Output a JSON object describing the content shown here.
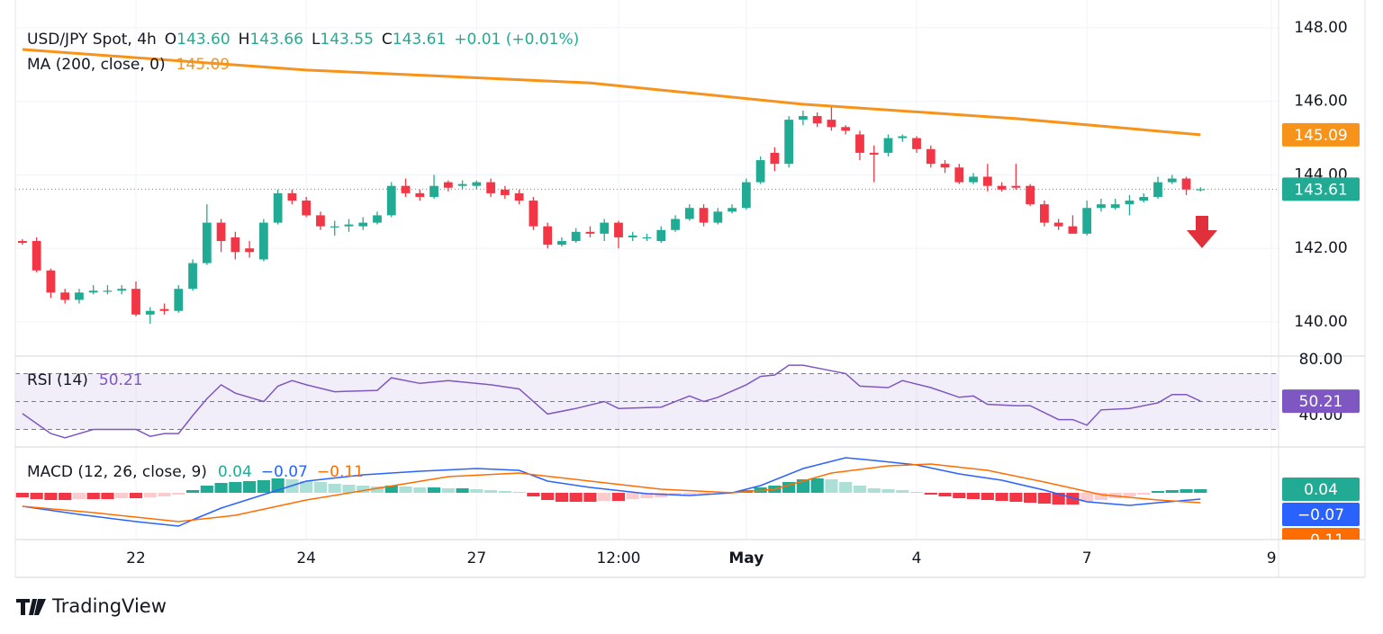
{
  "header": {
    "symbol": "USD/JPY Spot, 4h",
    "ohlc": [
      {
        "key": "O",
        "value": "143.60"
      },
      {
        "key": "H",
        "value": "143.66"
      },
      {
        "key": "L",
        "value": "143.55"
      },
      {
        "key": "C",
        "value": "143.61"
      }
    ],
    "change": "+0.01 (+0.01%)",
    "brand": "TradingView"
  },
  "chart_data": [
    {
      "type": "candlestick",
      "up_color": "#22ab94",
      "down_color": "#f23645",
      "categories": [
        null,
        null,
        null,
        null,
        null,
        null,
        null,
        null,
        "22",
        null,
        null,
        null,
        null,
        null,
        null,
        null,
        null,
        null,
        null,
        null,
        "24",
        null,
        null,
        null,
        null,
        null,
        null,
        null,
        null,
        null,
        null,
        null,
        "27",
        null,
        null,
        null,
        null,
        null,
        null,
        null,
        null,
        null,
        "12:00",
        null,
        null,
        null,
        null,
        null,
        null,
        null,
        null,
        "May",
        null,
        null,
        null,
        null,
        null,
        null,
        null,
        null,
        null,
        null,
        null,
        "4",
        null,
        null,
        null,
        null,
        null,
        null,
        null,
        null,
        null,
        null,
        null,
        "7",
        null,
        null,
        null,
        null,
        null,
        null,
        null,
        null,
        null,
        null,
        null,
        null,
        "9"
      ],
      "open": [
        142.2,
        142.2,
        141.4,
        140.8,
        140.6,
        140.8,
        140.85,
        140.85,
        140.9,
        140.2,
        140.35,
        140.3,
        140.9,
        141.6,
        142.7,
        142.3,
        142.0,
        141.7,
        142.7,
        143.5,
        143.3,
        142.9,
        142.6,
        142.6,
        142.6,
        142.7,
        142.9,
        143.7,
        143.5,
        143.4,
        143.8,
        143.7,
        143.7,
        143.8,
        143.6,
        143.5,
        143.3,
        142.6,
        142.1,
        142.2,
        142.45,
        142.4,
        142.7,
        142.3,
        142.3,
        142.2,
        142.5,
        142.8,
        143.1,
        142.7,
        143.0,
        143.1,
        143.8,
        144.6,
        144.3,
        145.5,
        145.6,
        145.5,
        145.3,
        145.1,
        144.6,
        144.6,
        145.0,
        145.0,
        144.7,
        144.3,
        144.2,
        143.8,
        143.95,
        143.7,
        143.7,
        143.7,
        143.2,
        142.7,
        142.6,
        142.4,
        143.1,
        143.1,
        143.2,
        143.3,
        143.4,
        143.8,
        143.9,
        143.6,
        null,
        null,
        null,
        null,
        null
      ],
      "high": [
        142.25,
        142.3,
        141.45,
        140.9,
        140.9,
        141.0,
        141.0,
        141.0,
        141.1,
        140.4,
        140.5,
        141.0,
        141.7,
        143.2,
        142.8,
        142.45,
        142.2,
        142.8,
        143.6,
        143.6,
        143.4,
        143.0,
        142.75,
        142.8,
        142.85,
        143.0,
        143.8,
        143.9,
        143.6,
        144.0,
        143.85,
        143.85,
        143.85,
        143.9,
        143.7,
        143.6,
        143.4,
        142.7,
        142.3,
        142.55,
        142.6,
        142.8,
        142.75,
        142.45,
        142.4,
        142.6,
        142.9,
        143.2,
        143.2,
        143.1,
        143.2,
        143.9,
        144.5,
        144.75,
        145.6,
        145.75,
        145.7,
        145.9,
        145.35,
        145.2,
        144.8,
        145.1,
        145.1,
        145.05,
        144.8,
        144.4,
        144.3,
        144.05,
        144.3,
        143.8,
        144.3,
        143.75,
        143.3,
        142.8,
        142.9,
        143.3,
        143.35,
        143.35,
        143.45,
        143.5,
        143.95,
        144.0,
        143.95,
        143.66,
        null,
        null,
        null,
        null,
        null
      ],
      "low": [
        142.1,
        141.35,
        140.65,
        140.5,
        140.5,
        140.75,
        140.75,
        140.75,
        140.15,
        139.95,
        140.2,
        140.25,
        140.85,
        141.55,
        141.9,
        141.7,
        141.75,
        141.65,
        142.65,
        143.2,
        142.85,
        142.5,
        142.35,
        142.45,
        142.5,
        142.65,
        142.85,
        143.4,
        143.3,
        143.35,
        143.55,
        143.6,
        143.6,
        143.4,
        143.35,
        143.2,
        142.5,
        142.0,
        142.05,
        142.15,
        142.3,
        142.2,
        142.0,
        142.2,
        142.2,
        142.15,
        142.45,
        142.75,
        142.6,
        142.65,
        142.95,
        143.05,
        143.75,
        144.1,
        144.2,
        145.35,
        145.3,
        145.2,
        145.1,
        144.4,
        143.8,
        144.5,
        144.9,
        144.6,
        144.2,
        144.05,
        143.75,
        143.75,
        143.55,
        143.55,
        143.6,
        143.15,
        142.6,
        142.5,
        142.4,
        142.35,
        143.0,
        143.05,
        142.9,
        143.25,
        143.35,
        143.75,
        143.45,
        143.55,
        null,
        null,
        null,
        null,
        null
      ],
      "close": [
        142.15,
        141.4,
        140.8,
        140.6,
        140.8,
        140.85,
        140.85,
        140.9,
        140.2,
        140.3,
        140.3,
        140.9,
        141.6,
        142.7,
        142.2,
        141.9,
        141.9,
        142.7,
        143.5,
        143.3,
        142.9,
        142.6,
        142.6,
        142.65,
        142.7,
        142.9,
        143.7,
        143.5,
        143.4,
        143.7,
        143.65,
        143.75,
        143.8,
        143.5,
        143.45,
        143.3,
        142.6,
        142.1,
        142.2,
        142.45,
        142.4,
        142.7,
        142.3,
        142.35,
        142.3,
        142.5,
        142.8,
        143.1,
        142.7,
        143.0,
        143.1,
        143.8,
        144.4,
        144.3,
        145.5,
        145.6,
        145.4,
        145.3,
        145.2,
        144.6,
        144.55,
        145.0,
        145.05,
        144.7,
        144.3,
        144.2,
        143.8,
        143.95,
        143.7,
        143.6,
        143.65,
        143.2,
        142.7,
        142.6,
        142.4,
        143.1,
        143.2,
        143.2,
        143.3,
        143.4,
        143.8,
        143.9,
        143.6,
        143.61,
        null,
        null,
        null,
        null,
        null
      ],
      "ma": {
        "name": "MA (200, close, 0)",
        "color": "#f7931a",
        "x": [
          0,
          20,
          40,
          55,
          70,
          83
        ],
        "values": [
          147.41,
          146.85,
          146.5,
          145.92,
          145.53,
          145.09
        ]
      },
      "ylim": [
        139.07,
        148.34
      ],
      "yticks": [
        {
          "value": 140,
          "label": "140.00"
        },
        {
          "value": 142,
          "label": "142.00"
        },
        {
          "value": 144,
          "label": "144.00"
        },
        {
          "value": 146,
          "label": "146.00"
        },
        {
          "value": 148,
          "label": "148.00"
        }
      ],
      "grid": true
    },
    {
      "type": "line",
      "name": "RSI (14)",
      "color": "#7e57c2",
      "x": [
        0,
        2,
        3,
        5,
        8,
        9,
        10,
        11,
        12,
        13,
        14,
        15,
        17,
        18,
        19,
        20,
        22,
        25,
        26,
        28,
        30,
        33,
        35,
        37,
        39,
        41,
        42,
        45,
        47,
        48,
        49,
        51,
        52,
        53,
        54,
        55,
        57,
        58,
        59,
        61,
        62,
        64,
        66,
        67,
        68,
        70,
        71,
        73,
        74,
        75,
        76,
        78,
        80,
        81,
        82,
        83
      ],
      "values": [
        41.3,
        27,
        24,
        30,
        30,
        25,
        27,
        27,
        40,
        52,
        62,
        56,
        50,
        61,
        65,
        62,
        57,
        58,
        67,
        63,
        65,
        62,
        59,
        41,
        45,
        50,
        45,
        46,
        54,
        50,
        53,
        62,
        68,
        69,
        76,
        76,
        72,
        70,
        61,
        60,
        65,
        60,
        53,
        54,
        48,
        47,
        47,
        37,
        37,
        33,
        44,
        45,
        49,
        55,
        55,
        50.21
      ],
      "levels": [
        70,
        50,
        30
      ],
      "ylim": [
        17.4,
        81.9
      ],
      "yticks": [
        {
          "value": 40,
          "label": "40.00"
        },
        {
          "value": 80,
          "label": "80.00"
        }
      ]
    },
    {
      "type": "macd",
      "name": "MACD (12, 26, close, 9)",
      "histogram": {
        "colors": [
          "#22ab94",
          "#acdfd5",
          "#f23645",
          "#fccbcd"
        ],
        "values": [
          -0.05,
          -0.07,
          -0.08,
          -0.08,
          -0.07,
          -0.07,
          -0.07,
          -0.06,
          -0.06,
          -0.05,
          -0.04,
          -0.02,
          0.03,
          0.08,
          0.11,
          0.12,
          0.13,
          0.14,
          0.16,
          0.15,
          0.13,
          0.12,
          0.1,
          0.09,
          0.08,
          0.07,
          0.08,
          0.07,
          0.06,
          0.06,
          0.05,
          0.05,
          0.04,
          0.03,
          0.02,
          0.01,
          -0.04,
          -0.08,
          -0.1,
          -0.1,
          -0.1,
          -0.09,
          -0.09,
          -0.07,
          -0.06,
          -0.05,
          -0.03,
          -0.02,
          -0.01,
          0.0,
          0.01,
          0.03,
          0.06,
          0.08,
          0.12,
          0.15,
          0.16,
          0.15,
          0.12,
          0.08,
          0.05,
          0.04,
          0.03,
          0.01,
          -0.02,
          -0.04,
          -0.06,
          -0.07,
          -0.08,
          -0.09,
          -0.1,
          -0.11,
          -0.12,
          -0.13,
          -0.13,
          -0.1,
          -0.08,
          -0.06,
          -0.04,
          -0.02,
          0.02,
          0.03,
          0.04,
          0.04
        ]
      },
      "series": [
        {
          "name": "MACD",
          "color": "#2962ff",
          "legend_label": "−0.07",
          "x": [
            0,
            4,
            8,
            11,
            12,
            14,
            18,
            20,
            24,
            28,
            32,
            35,
            37,
            40,
            44,
            47,
            50,
            52,
            55,
            58,
            60,
            63,
            66,
            69,
            72,
            75,
            78,
            80,
            83
          ],
          "values": [
            -0.15,
            -0.24,
            -0.32,
            -0.37,
            -0.3,
            -0.17,
            0.03,
            0.13,
            0.2,
            0.24,
            0.27,
            0.25,
            0.13,
            0.06,
            -0.01,
            -0.03,
            0.0,
            0.08,
            0.27,
            0.39,
            0.36,
            0.31,
            0.21,
            0.14,
            0.03,
            -0.1,
            -0.14,
            -0.11,
            -0.07
          ]
        },
        {
          "name": "Signal",
          "color": "#ff6d00",
          "legend_label": "−0.11",
          "x": [
            0,
            5,
            11,
            15,
            20,
            25,
            30,
            35,
            40,
            45,
            50,
            53,
            57,
            61,
            64,
            68,
            72,
            76,
            80,
            83
          ],
          "values": [
            -0.15,
            -0.22,
            -0.32,
            -0.25,
            -0.08,
            0.05,
            0.18,
            0.22,
            0.13,
            0.04,
            0.0,
            0.04,
            0.22,
            0.3,
            0.32,
            0.25,
            0.12,
            -0.02,
            -0.08,
            -0.11
          ]
        }
      ],
      "ylim": [
        -0.52,
        0.5
      ]
    }
  ]
}
